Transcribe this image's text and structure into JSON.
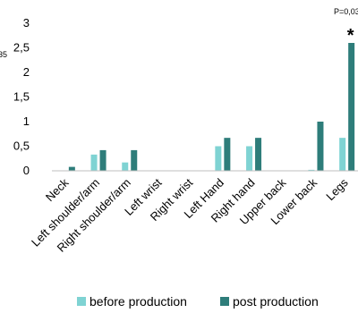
{
  "chart_data": {
    "type": "bar",
    "categories": [
      "Neck",
      "Left shoulder/arm",
      "Right shoulder/arm",
      "Left wrist",
      "Right wrist",
      "Left Hand",
      "Right hand",
      "Upper back",
      "Lower back",
      "Legs"
    ],
    "series": [
      {
        "name": "before production",
        "color": "#7fd3d3",
        "values": [
          0,
          0.33,
          0.17,
          0,
          0,
          0.5,
          0.5,
          0,
          0.02,
          0.67
        ]
      },
      {
        "name": "post production",
        "color": "#2e7d7a",
        "values": [
          0.08,
          0.42,
          0.42,
          0,
          0,
          0.67,
          0.67,
          0,
          1.0,
          2.6
        ]
      }
    ],
    "yticks": [
      "0",
      "0,5",
      "1",
      "1,5",
      "2",
      "2,5",
      "3"
    ],
    "ylim": [
      0,
      3
    ],
    "annotation": {
      "text": "P=0,03",
      "marker": "*",
      "category": "Legs"
    },
    "edge_text": "35",
    "title": "",
    "xlabel": "",
    "ylabel": "",
    "legend": "bottom",
    "grid": false
  }
}
